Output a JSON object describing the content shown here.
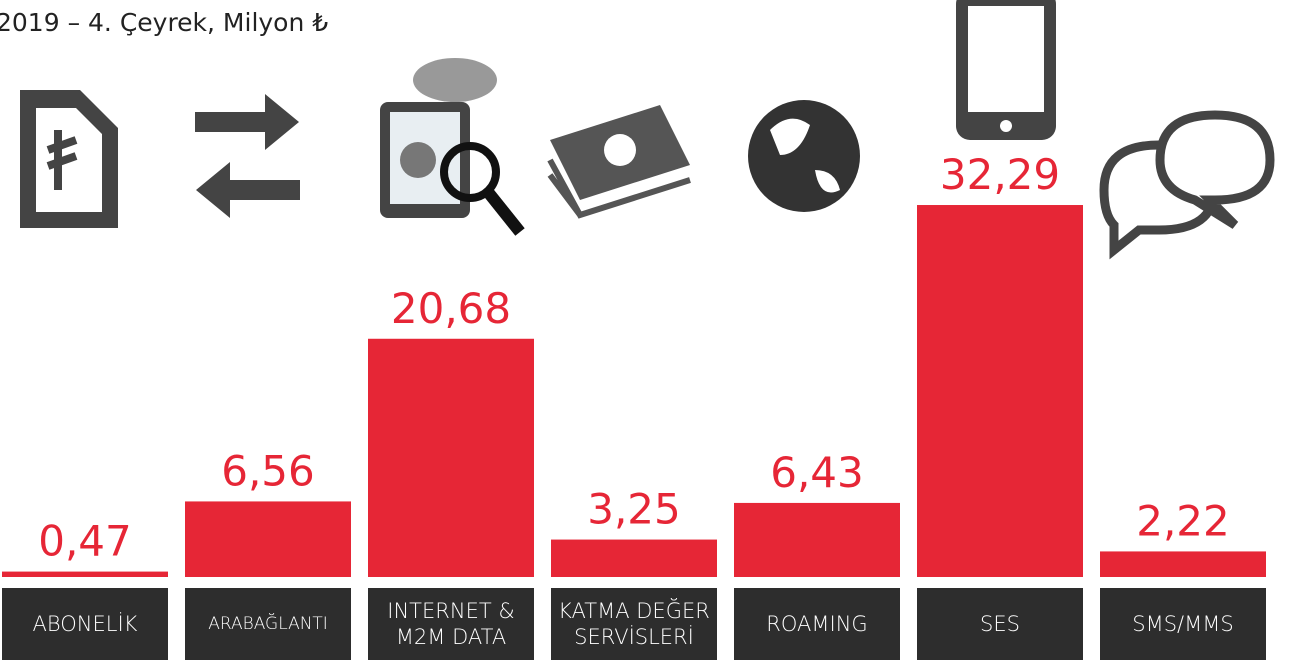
{
  "chart_data": {
    "type": "bar",
    "title": "2019 – 4. Çeyrek, Milyon ₺",
    "categories": [
      "ABONELİK",
      "ARABAĞLANTI",
      "INTERNET & M2M DATA",
      "KATMA DEĞER SERVİSLERİ",
      "ROAMING",
      "SES",
      "SMS/MMS"
    ],
    "values": [
      0.47,
      6.56,
      20.68,
      3.25,
      6.43,
      32.29,
      2.22
    ],
    "value_labels": [
      "0,47",
      "6,56",
      "20,68",
      "3,25",
      "6,43",
      "32,29",
      "2,22"
    ],
    "color": "#e62636",
    "ylim": [
      0,
      50
    ]
  }
}
